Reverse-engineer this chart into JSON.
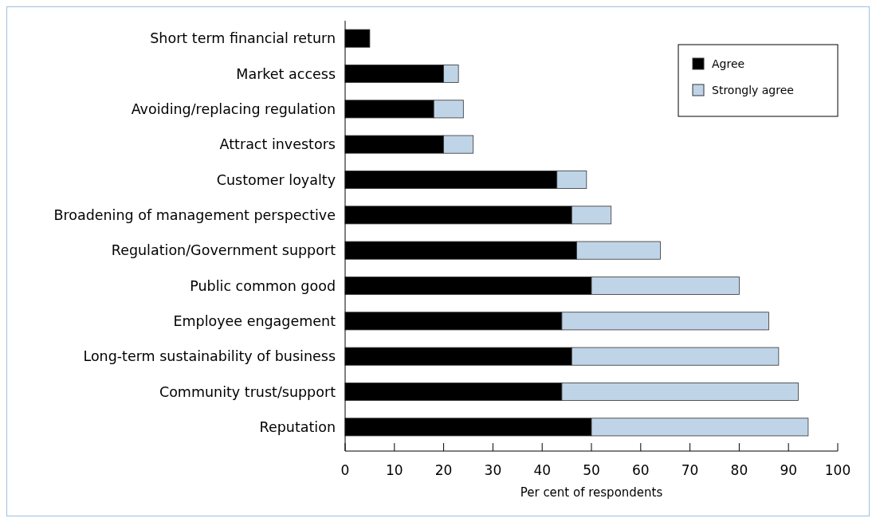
{
  "chart_data": {
    "type": "bar",
    "orientation": "horizontal",
    "stacked": true,
    "xlabel": "Per cent of respondents",
    "categories": [
      "Short term financial return",
      "Market access",
      "Avoiding/replacing regulation",
      "Attract investors",
      "Customer loyalty",
      "Broadening of management perspective",
      "Regulation/Government support",
      "Public common good",
      "Employee engagement",
      "Long-term sustainability of business",
      "Community trust/support",
      "Reputation"
    ],
    "series": [
      {
        "name": "Agree",
        "color": "#000000",
        "values": [
          5,
          20,
          18,
          20,
          43,
          46,
          47,
          50,
          44,
          46,
          44,
          50
        ]
      },
      {
        "name": "Strongly agree",
        "color": "#c0d4e8",
        "values": [
          0,
          3,
          6,
          6,
          6,
          8,
          17,
          30,
          42,
          42,
          48,
          44
        ]
      }
    ],
    "xlim": [
      0,
      100
    ],
    "xticks": [
      0,
      10,
      20,
      30,
      40,
      50,
      60,
      70,
      80,
      90,
      100
    ],
    "grid": false,
    "legend": "top right"
  }
}
